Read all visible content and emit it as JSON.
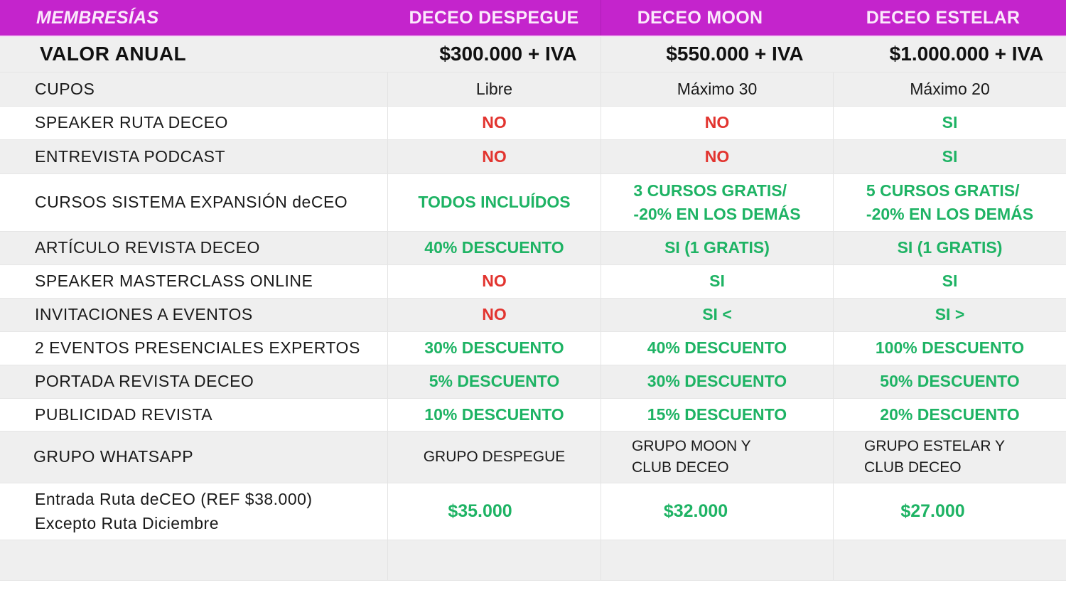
{
  "header": {
    "title": "MEMBRESÍAS",
    "plans": [
      "DECEO DESPEGUE",
      "DECEO MOON",
      "DECEO ESTELAR"
    ],
    "background_color": "#c424cc"
  },
  "colors": {
    "green": "#1eb364",
    "red": "#e2342f"
  },
  "annual": {
    "label": "VALOR ANUAL",
    "values": [
      "$300.000 + IVA",
      "$550.000 + IVA",
      "$1.000.000 + IVA"
    ]
  },
  "rows": [
    {
      "label": "CUPOS",
      "cells": [
        {
          "text": "Libre",
          "color": "dark"
        },
        {
          "text": "Máximo 30",
          "color": "dark"
        },
        {
          "text": "Máximo 20",
          "color": "dark"
        }
      ]
    },
    {
      "label": "SPEAKER RUTA DECEO",
      "cells": [
        {
          "text": "NO",
          "color": "red"
        },
        {
          "text": "NO",
          "color": "red"
        },
        {
          "text": "SI",
          "color": "green"
        }
      ]
    },
    {
      "label": "ENTREVISTA PODCAST",
      "cells": [
        {
          "text": "NO",
          "color": "red"
        },
        {
          "text": "NO",
          "color": "red"
        },
        {
          "text": "SI",
          "color": "green"
        }
      ]
    },
    {
      "label": "CURSOS SISTEMA EXPANSIÓN deCEO",
      "cells": [
        {
          "text": "TODOS INCLUÍDOS",
          "color": "green"
        },
        {
          "text": "3 CURSOS GRATIS/\n-20% EN LOS DEMÁS",
          "color": "green"
        },
        {
          "text": "5 CURSOS GRATIS/\n-20% EN LOS DEMÁS",
          "color": "green"
        }
      ]
    },
    {
      "label": "ARTÍCULO REVISTA DECEO",
      "cells": [
        {
          "text": "40% DESCUENTO",
          "color": "green"
        },
        {
          "text": "SI (1 GRATIS)",
          "color": "green"
        },
        {
          "text": "SI (1 GRATIS)",
          "color": "green"
        }
      ]
    },
    {
      "label": "SPEAKER MASTERCLASS ONLINE",
      "cells": [
        {
          "text": "NO",
          "color": "red"
        },
        {
          "text": "SI",
          "color": "green"
        },
        {
          "text": "SI",
          "color": "green"
        }
      ]
    },
    {
      "label": "INVITACIONES A EVENTOS",
      "cells": [
        {
          "text": "NO",
          "color": "red"
        },
        {
          "text": "SI <",
          "color": "green"
        },
        {
          "text": "SI >",
          "color": "green"
        }
      ]
    },
    {
      "label": "2 EVENTOS PRESENCIALES EXPERTOS",
      "cells": [
        {
          "text": "30% DESCUENTO",
          "color": "green"
        },
        {
          "text": "40% DESCUENTO",
          "color": "green"
        },
        {
          "text": "100% DESCUENTO",
          "color": "green"
        }
      ]
    },
    {
      "label": "PORTADA REVISTA DECEO",
      "cells": [
        {
          "text": "5% DESCUENTO",
          "color": "green"
        },
        {
          "text": "30% DESCUENTO",
          "color": "green"
        },
        {
          "text": "50% DESCUENTO",
          "color": "green"
        }
      ]
    },
    {
      "label": "PUBLICIDAD REVISTA",
      "cells": [
        {
          "text": "10% DESCUENTO",
          "color": "green"
        },
        {
          "text": "15% DESCUENTO",
          "color": "green"
        },
        {
          "text": "20% DESCUENTO",
          "color": "green"
        }
      ]
    },
    {
      "label": "GRUPO WHATSAPP",
      "cells": [
        {
          "text": "GRUPO DESPEGUE",
          "color": "dark"
        },
        {
          "text": "GRUPO MOON Y\nCLUB DECEO",
          "color": "dark"
        },
        {
          "text": "GRUPO ESTELAR Y\nCLUB DECEO",
          "color": "dark"
        }
      ]
    },
    {
      "label": "Entrada Ruta deCEO (REF $38.000)\nExcepto Ruta Diciembre",
      "cells": [
        {
          "text": "$35.000",
          "color": "green"
        },
        {
          "text": "$32.000",
          "color": "green"
        },
        {
          "text": "$27.000",
          "color": "green"
        }
      ]
    },
    {
      "label": "",
      "cells": [
        {
          "text": "",
          "color": "dark"
        },
        {
          "text": "",
          "color": "dark"
        },
        {
          "text": "",
          "color": "dark"
        }
      ]
    }
  ]
}
